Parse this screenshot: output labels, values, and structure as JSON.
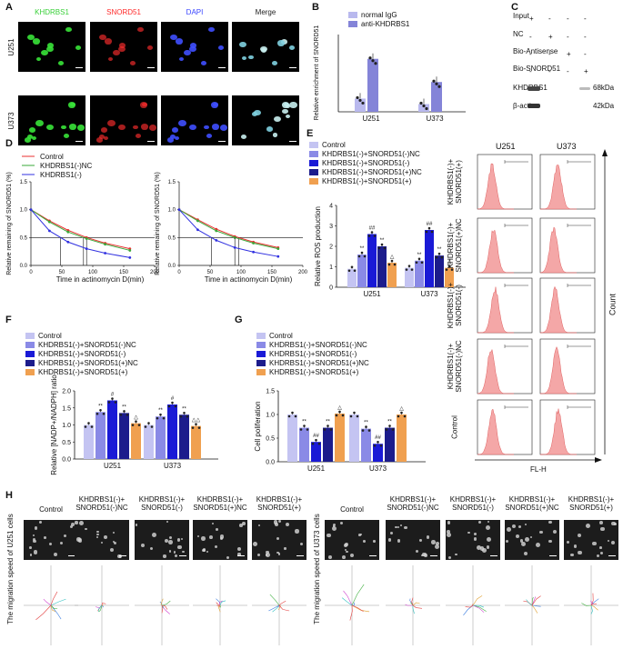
{
  "panels": {
    "A": "A",
    "B": "B",
    "C": "C",
    "D": "D",
    "E": "E",
    "F": "F",
    "G": "G",
    "H": "H"
  },
  "panel_a": {
    "columns": [
      "KHDRBS1",
      "SNORD51",
      "DAPI",
      "Merge"
    ],
    "column_colors": [
      "#38d038",
      "#ff2a2a",
      "#3a46ff",
      "#222222"
    ],
    "rows": [
      "U251",
      "U373"
    ]
  },
  "panel_b": {
    "ylabel": "Relative enrichment of SNORD51",
    "legend": [
      "normal IgG",
      "anti-KHDRBS1"
    ],
    "colors": [
      "#b9b9ee",
      "#8484d8"
    ],
    "groups": [
      "U251",
      "U373"
    ]
  },
  "panel_c": {
    "row_labels": [
      "Input",
      "NC",
      "Bio-Antisense",
      "Bio-SNORD51"
    ],
    "marks": [
      [
        "+",
        "-",
        "-",
        "-"
      ],
      [
        "-",
        "+",
        "-",
        "-"
      ],
      [
        "-",
        "-",
        "+",
        "-"
      ],
      [
        "-",
        "-",
        "-",
        "+"
      ]
    ],
    "blots": [
      "KHDRBS1",
      "β-actin"
    ],
    "sizes": [
      "68kDa",
      "42kDa"
    ]
  },
  "panel_d": {
    "legend": [
      "Control",
      "KHDRBS1(-)NC",
      "KHDRBS1(-)"
    ],
    "legend_colors": [
      "#e83030",
      "#3aa83a",
      "#3030e0"
    ],
    "ylabel": "Relative remaining of SNORD51 (%)",
    "xlabel": "Time in actinomycin D(min)",
    "yticks": [
      "0.0",
      "0.5",
      "1.0",
      "1.5"
    ],
    "xticks": [
      "0",
      "50",
      "100",
      "150",
      "200"
    ]
  },
  "panel_e": {
    "legend": [
      "Control",
      "KHDRBS1(-)+SNORD51(-)NC",
      "KHDRBS1(-)+SNORD51(-)",
      "KHDRBS1(-)+SNORD51(+)NC",
      "KHDRBS1(-)+SNORD51(+)"
    ],
    "ylabel": "Relative ROS production",
    "yticks": [
      "0",
      "1",
      "2",
      "3",
      "4"
    ],
    "groups": [
      "U251",
      "U373"
    ],
    "marks_u251": [
      "",
      "**",
      "##",
      "**",
      "△"
    ],
    "marks_u373": [
      "",
      "**",
      "##",
      "**",
      "△"
    ]
  },
  "panel_flow": {
    "columns": [
      "U251",
      "U373"
    ],
    "row_labels": [
      "KHDRBS1(-)+ SNORD51(+)",
      "KHDRBS1(-)+ SNORD51(+)NC",
      "KHDRBS1(-)+ SNORD51(-)",
      "KHDRBS1(-)+ SNORD51(-)NC",
      "Control"
    ],
    "xlabel": "FL-H",
    "ylabel": "Count"
  },
  "panel_f": {
    "legend": [
      "Control",
      "KHDRBS1(-)+SNORD51(-)NC",
      "KHDRBS1(-)+SNORD51(-)",
      "KHDRBS1(-)+SNORD51(+)NC",
      "KHDRBS1(-)+SNORD51(+)"
    ],
    "ylabel": "Relative [NADP+/NADPH] ratio",
    "yticks": [
      "0.0",
      "0.5",
      "1.0",
      "1.5",
      "2.0"
    ],
    "groups": [
      "U251",
      "U373"
    ],
    "marks_u251": [
      "",
      "**",
      "#",
      "**",
      "△"
    ],
    "marks_u373": [
      "",
      "**",
      "#",
      "**",
      "△△"
    ]
  },
  "panel_g": {
    "legend": [
      "Control",
      "KHDRBS1(-)+SNORD51(-)NC",
      "KHDRBS1(-)+SNORD51(-)",
      "KHDRBS1(-)+SNORD51(+)NC",
      "KHDRBS1(-)+SNORD51(+)"
    ],
    "ylabel": "Cell poliferation",
    "yticks": [
      "0.0",
      "0.5",
      "1.0",
      "1.5"
    ],
    "groups": [
      "U251",
      "U373"
    ],
    "marks_u251": [
      "",
      "**",
      "##",
      "**",
      "△"
    ],
    "marks_u373": [
      "",
      "**",
      "##",
      "**",
      "△"
    ]
  },
  "panel_h": {
    "left_ylabel": "The migration speed of U251 cells",
    "right_ylabel": "The migration speed of U373 cells",
    "titles": [
      "Control",
      "KHDRBS1(-)+ SNORD51(-)NC",
      "KHDRBS1(-)+ SNORD51(-)",
      "KHDRBS1(-)+ SNORD51(+)NC",
      "KHDRBS1(-)+ SNORD51(+)"
    ]
  },
  "bar_colors": [
    "#c4c4f2",
    "#8a8ae6",
    "#1a1ad6",
    "#1c1c8c",
    "#f0a050"
  ],
  "chart_data": [
    {
      "type": "bar",
      "ylabel": "Relative enrichment of SNORD51",
      "categories": [
        "U251",
        "U373"
      ],
      "series": [
        {
          "name": "normal IgG",
          "values": [
            12,
            7
          ]
        },
        {
          "name": "anti-KHDRBS1",
          "values": [
            48,
            27
          ]
        }
      ],
      "ylim": [
        0,
        70
      ]
    },
    {
      "type": "line",
      "xlabel": "Time in actinomycin D(min)",
      "ylabel": "Relative remaining of SNORD51 (%)",
      "x": [
        0,
        30,
        60,
        90,
        120,
        160
      ],
      "series": [
        {
          "name": "Control",
          "values": [
            1.0,
            0.8,
            0.63,
            0.5,
            0.4,
            0.3
          ]
        },
        {
          "name": "KHDRBS1(-)NC",
          "values": [
            1.0,
            0.78,
            0.6,
            0.48,
            0.38,
            0.27
          ]
        },
        {
          "name": "KHDRBS1(-)",
          "values": [
            1.0,
            0.62,
            0.42,
            0.3,
            0.22,
            0.14
          ]
        }
      ],
      "ylim": [
        0,
        1.5
      ],
      "xlim": [
        0,
        200
      ]
    },
    {
      "type": "line",
      "xlabel": "Time in actinomycin D(min)",
      "ylabel": "Relative remaining of SNORD51 (%)",
      "x": [
        0,
        30,
        60,
        90,
        120,
        160
      ],
      "series": [
        {
          "name": "Control",
          "values": [
            1.0,
            0.82,
            0.65,
            0.52,
            0.42,
            0.32
          ]
        },
        {
          "name": "KHDRBS1(-)NC",
          "values": [
            1.0,
            0.8,
            0.62,
            0.5,
            0.4,
            0.3
          ]
        },
        {
          "name": "KHDRBS1(-)",
          "values": [
            1.0,
            0.64,
            0.45,
            0.32,
            0.24,
            0.16
          ]
        }
      ],
      "ylim": [
        0,
        1.5
      ],
      "xlim": [
        0,
        200
      ]
    },
    {
      "type": "bar",
      "ylabel": "Relative ROS production",
      "categories": [
        "U251",
        "U373"
      ],
      "series": [
        {
          "name": "Control",
          "values": [
            0.9,
            0.95
          ]
        },
        {
          "name": "KHDRBS1(-)+SNORD51(-)NC",
          "values": [
            1.6,
            1.3
          ]
        },
        {
          "name": "KHDRBS1(-)+SNORD51(-)",
          "values": [
            2.6,
            2.8
          ]
        },
        {
          "name": "KHDRBS1(-)+SNORD51(+)NC",
          "values": [
            2.0,
            1.55
          ]
        },
        {
          "name": "KHDRBS1(-)+SNORD51(+)",
          "values": [
            1.2,
            0.95
          ]
        }
      ],
      "ylim": [
        0,
        4
      ]
    },
    {
      "type": "bar",
      "ylabel": "Relative [NADP+/NADPH] ratio",
      "categories": [
        "U251",
        "U373"
      ],
      "series": [
        {
          "name": "Control",
          "values": [
            1.0,
            1.0
          ]
        },
        {
          "name": "KHDRBS1(-)+SNORD51(-)NC",
          "values": [
            1.38,
            1.25
          ]
        },
        {
          "name": "KHDRBS1(-)+SNORD51(-)",
          "values": [
            1.72,
            1.6
          ]
        },
        {
          "name": "KHDRBS1(-)+SNORD51(+)NC",
          "values": [
            1.35,
            1.3
          ]
        },
        {
          "name": "KHDRBS1(-)+SNORD51(+)",
          "values": [
            1.05,
            0.97
          ]
        }
      ],
      "ylim": [
        0,
        2
      ]
    },
    {
      "type": "bar",
      "ylabel": "Cell poliferation",
      "categories": [
        "U251",
        "U373"
      ],
      "series": [
        {
          "name": "Control",
          "values": [
            1.0,
            1.0
          ]
        },
        {
          "name": "KHDRBS1(-)+SNORD51(-)NC",
          "values": [
            0.72,
            0.7
          ]
        },
        {
          "name": "KHDRBS1(-)+SNORD51(-)",
          "values": [
            0.42,
            0.38
          ]
        },
        {
          "name": "KHDRBS1(-)+SNORD51(+)NC",
          "values": [
            0.72,
            0.72
          ]
        },
        {
          "name": "KHDRBS1(-)+SNORD51(+)",
          "values": [
            1.02,
            1.0
          ]
        }
      ],
      "ylim": [
        0,
        1.5
      ]
    }
  ]
}
